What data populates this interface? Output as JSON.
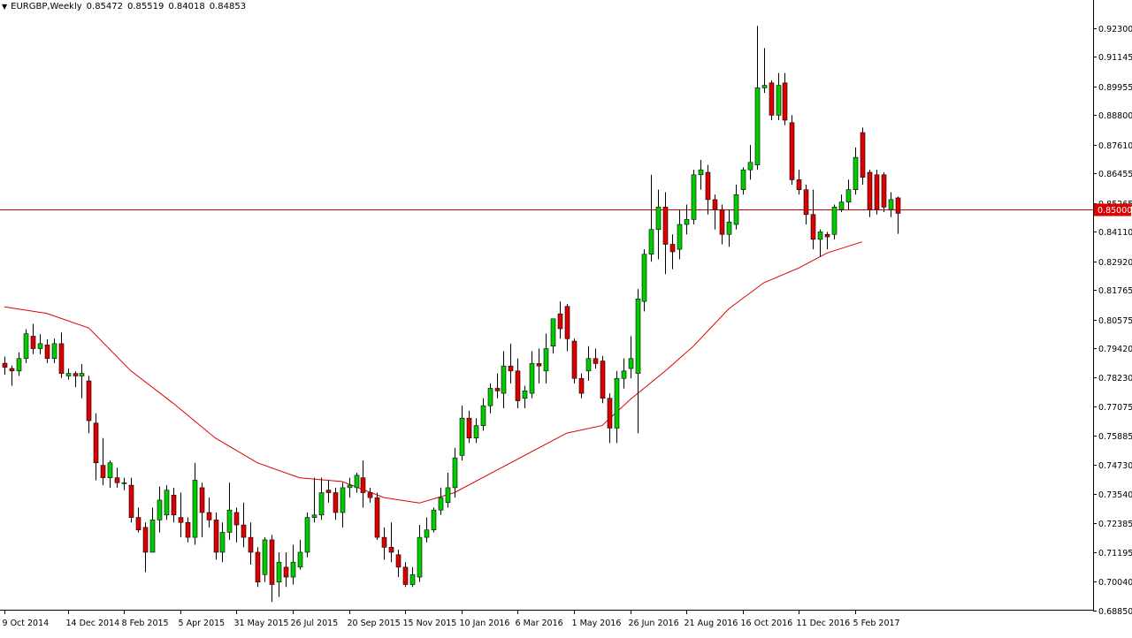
{
  "header": {
    "symbol": "EURGBP,Weekly",
    "ohlc": [
      "0.85472",
      "0.85519",
      "0.84018",
      "0.84853"
    ]
  },
  "colors": {
    "bull": "#00cc00",
    "bear": "#dd0000",
    "wick": "#000000",
    "ma": "#dd0000",
    "hline": "#dd0000",
    "price_label_bg": "#dd0000",
    "price_label_text": "#ffffff"
  },
  "chart_data": {
    "type": "candlestick",
    "title": "EURGBP,Weekly",
    "y_ticks": [
      "0.92300",
      "0.91145",
      "0.89955",
      "0.88800",
      "0.87610",
      "0.86455",
      "0.85265",
      "0.84110",
      "0.82920",
      "0.81765",
      "0.80575",
      "0.79420",
      "0.78230",
      "0.77075",
      "0.75885",
      "0.74730",
      "0.73540",
      "0.72385",
      "0.71195",
      "0.70040",
      "0.68850"
    ],
    "ylim": [
      0.6885,
      0.923
    ],
    "x_ticks": [
      {
        "label": "9 Oct 2014",
        "index": 0
      },
      {
        "label": "14 Dec 2014",
        "index": 9
      },
      {
        "label": "8 Feb 2015",
        "index": 17
      },
      {
        "label": "5 Apr 2015",
        "index": 25
      },
      {
        "label": "31 May 2015",
        "index": 33
      },
      {
        "label": "26 Jul 2015",
        "index": 41
      },
      {
        "label": "20 Sep 2015",
        "index": 49
      },
      {
        "label": "15 Nov 2015",
        "index": 57
      },
      {
        "label": "10 Jan 2016",
        "index": 65
      },
      {
        "label": "6 Mar 2016",
        "index": 73
      },
      {
        "label": "1 May 2016",
        "index": 81
      },
      {
        "label": "26 Jun 2016",
        "index": 89
      },
      {
        "label": "21 Aug 2016",
        "index": 97
      },
      {
        "label": "16 Oct 2016",
        "index": 105
      },
      {
        "label": "11 Dec 2016",
        "index": 113
      },
      {
        "label": "5 Feb 2017",
        "index": 121
      }
    ],
    "horizontal_line": {
      "value": 0.85,
      "label": "0.85000"
    },
    "moving_average": [
      [
        0,
        0.8108
      ],
      [
        6,
        0.8082
      ],
      [
        12,
        0.8023
      ],
      [
        18,
        0.785
      ],
      [
        24,
        0.772
      ],
      [
        30,
        0.758
      ],
      [
        36,
        0.748
      ],
      [
        42,
        0.742
      ],
      [
        48,
        0.7405
      ],
      [
        54,
        0.734
      ],
      [
        59,
        0.7318
      ],
      [
        64,
        0.736
      ],
      [
        70,
        0.745
      ],
      [
        76,
        0.754
      ],
      [
        80,
        0.76
      ],
      [
        85,
        0.763
      ],
      [
        89,
        0.7735
      ],
      [
        94,
        0.785
      ],
      [
        98,
        0.795
      ],
      [
        103,
        0.81
      ],
      [
        108,
        0.8205
      ],
      [
        113,
        0.8265
      ],
      [
        117,
        0.8325
      ],
      [
        122,
        0.837
      ]
    ],
    "candles": [
      [
        0.7881,
        0.7865,
        0.7835,
        0.7908
      ],
      [
        0.786,
        0.785,
        0.779,
        0.7872
      ],
      [
        0.785,
        0.79,
        0.783,
        0.7925
      ],
      [
        0.79,
        0.8,
        0.7882,
        0.8018
      ],
      [
        0.799,
        0.794,
        0.7918,
        0.804
      ],
      [
        0.794,
        0.796,
        0.7918,
        0.7998
      ],
      [
        0.7955,
        0.79,
        0.7882,
        0.7978
      ],
      [
        0.79,
        0.796,
        0.7882,
        0.798
      ],
      [
        0.796,
        0.784,
        0.7822,
        0.8005
      ],
      [
        0.783,
        0.784,
        0.7815,
        0.786
      ],
      [
        0.784,
        0.783,
        0.7785,
        0.7848
      ],
      [
        0.783,
        0.784,
        0.774,
        0.7878
      ],
      [
        0.781,
        0.765,
        0.76,
        0.783
      ],
      [
        0.764,
        0.748,
        0.741,
        0.768
      ],
      [
        0.747,
        0.742,
        0.739,
        0.758
      ],
      [
        0.742,
        0.748,
        0.738,
        0.749
      ],
      [
        0.742,
        0.74,
        0.738,
        0.746
      ],
      [
        0.74,
        0.74,
        0.737,
        0.742
      ],
      [
        0.739,
        0.726,
        0.724,
        0.742
      ],
      [
        0.726,
        0.721,
        0.72,
        0.73
      ],
      [
        0.722,
        0.712,
        0.704,
        0.724
      ],
      [
        0.712,
        0.725,
        0.712,
        0.73
      ],
      [
        0.725,
        0.733,
        0.72,
        0.7385
      ],
      [
        0.727,
        0.737,
        0.725,
        0.739
      ],
      [
        0.735,
        0.727,
        0.724,
        0.738
      ],
      [
        0.726,
        0.724,
        0.718,
        0.736
      ],
      [
        0.724,
        0.718,
        0.716,
        0.726
      ],
      [
        0.718,
        0.741,
        0.715,
        0.748
      ],
      [
        0.738,
        0.728,
        0.718,
        0.74
      ],
      [
        0.728,
        0.725,
        0.722,
        0.734
      ],
      [
        0.725,
        0.712,
        0.709,
        0.728
      ],
      [
        0.712,
        0.72,
        0.708,
        0.724
      ],
      [
        0.72,
        0.729,
        0.717,
        0.74
      ],
      [
        0.728,
        0.723,
        0.716,
        0.73
      ],
      [
        0.723,
        0.718,
        0.714,
        0.732
      ],
      [
        0.718,
        0.712,
        0.707,
        0.724
      ],
      [
        0.712,
        0.7,
        0.698,
        0.714
      ],
      [
        0.703,
        0.717,
        0.7,
        0.718
      ],
      [
        0.717,
        0.699,
        0.692,
        0.719
      ],
      [
        0.7,
        0.708,
        0.694,
        0.712
      ],
      [
        0.706,
        0.702,
        0.698,
        0.712
      ],
      [
        0.702,
        0.708,
        0.699,
        0.715
      ],
      [
        0.706,
        0.712,
        0.705,
        0.717
      ],
      [
        0.712,
        0.726,
        0.71,
        0.728
      ],
      [
        0.726,
        0.727,
        0.724,
        0.742
      ],
      [
        0.727,
        0.736,
        0.725,
        0.742
      ],
      [
        0.737,
        0.736,
        0.732,
        0.741
      ],
      [
        0.736,
        0.728,
        0.725,
        0.738
      ],
      [
        0.728,
        0.738,
        0.722,
        0.74
      ],
      [
        0.738,
        0.739,
        0.734,
        0.742
      ],
      [
        0.738,
        0.743,
        0.736,
        0.744
      ],
      [
        0.742,
        0.736,
        0.73,
        0.749
      ],
      [
        0.736,
        0.734,
        0.732,
        0.738
      ],
      [
        0.734,
        0.718,
        0.717,
        0.736
      ],
      [
        0.718,
        0.714,
        0.709,
        0.722
      ],
      [
        0.714,
        0.712,
        0.708,
        0.724
      ],
      [
        0.711,
        0.706,
        0.702,
        0.713
      ],
      [
        0.706,
        0.699,
        0.698,
        0.708
      ],
      [
        0.699,
        0.703,
        0.698,
        0.706
      ],
      [
        0.702,
        0.718,
        0.7,
        0.723
      ],
      [
        0.718,
        0.721,
        0.716,
        0.726
      ],
      [
        0.721,
        0.729,
        0.72,
        0.73
      ],
      [
        0.729,
        0.734,
        0.727,
        0.738
      ],
      [
        0.732,
        0.738,
        0.73,
        0.744
      ],
      [
        0.738,
        0.75,
        0.734,
        0.754
      ],
      [
        0.751,
        0.766,
        0.749,
        0.771
      ],
      [
        0.766,
        0.758,
        0.756,
        0.769
      ],
      [
        0.758,
        0.763,
        0.756,
        0.766
      ],
      [
        0.763,
        0.771,
        0.761,
        0.774
      ],
      [
        0.771,
        0.778,
        0.768,
        0.78
      ],
      [
        0.778,
        0.777,
        0.774,
        0.784
      ],
      [
        0.776,
        0.787,
        0.77,
        0.793
      ],
      [
        0.787,
        0.785,
        0.78,
        0.796
      ],
      [
        0.785,
        0.773,
        0.77,
        0.79
      ],
      [
        0.774,
        0.777,
        0.77,
        0.779
      ],
      [
        0.776,
        0.788,
        0.774,
        0.793
      ],
      [
        0.788,
        0.787,
        0.78,
        0.794
      ],
      [
        0.785,
        0.794,
        0.78,
        0.8
      ],
      [
        0.795,
        0.806,
        0.792,
        0.806
      ],
      [
        0.808,
        0.802,
        0.798,
        0.813
      ],
      [
        0.811,
        0.798,
        0.793,
        0.812
      ],
      [
        0.797,
        0.782,
        0.78,
        0.798
      ],
      [
        0.782,
        0.776,
        0.774,
        0.784
      ],
      [
        0.785,
        0.79,
        0.781,
        0.795
      ],
      [
        0.79,
        0.788,
        0.786,
        0.794
      ],
      [
        0.789,
        0.774,
        0.772,
        0.791
      ],
      [
        0.774,
        0.762,
        0.756,
        0.776
      ],
      [
        0.762,
        0.782,
        0.756,
        0.785
      ],
      [
        0.782,
        0.785,
        0.778,
        0.79
      ],
      [
        0.786,
        0.79,
        0.782,
        0.799
      ],
      [
        0.784,
        0.814,
        0.76,
        0.818
      ],
      [
        0.813,
        0.832,
        0.809,
        0.834
      ],
      [
        0.832,
        0.842,
        0.829,
        0.864
      ],
      [
        0.842,
        0.851,
        0.83,
        0.858
      ],
      [
        0.851,
        0.836,
        0.824,
        0.857
      ],
      [
        0.836,
        0.833,
        0.826,
        0.84
      ],
      [
        0.834,
        0.844,
        0.83,
        0.85
      ],
      [
        0.844,
        0.846,
        0.84,
        0.852
      ],
      [
        0.846,
        0.864,
        0.844,
        0.866
      ],
      [
        0.864,
        0.866,
        0.858,
        0.87
      ],
      [
        0.865,
        0.854,
        0.848,
        0.868
      ],
      [
        0.854,
        0.85,
        0.842,
        0.856
      ],
      [
        0.85,
        0.84,
        0.836,
        0.852
      ],
      [
        0.84,
        0.845,
        0.835,
        0.85
      ],
      [
        0.844,
        0.856,
        0.842,
        0.86
      ],
      [
        0.858,
        0.866,
        0.856,
        0.867
      ],
      [
        0.866,
        0.869,
        0.862,
        0.876
      ],
      [
        0.868,
        0.899,
        0.866,
        0.924
      ],
      [
        0.899,
        0.9,
        0.897,
        0.915
      ],
      [
        0.901,
        0.888,
        0.886,
        0.902
      ],
      [
        0.888,
        0.9,
        0.886,
        0.905
      ],
      [
        0.901,
        0.886,
        0.884,
        0.905
      ],
      [
        0.885,
        0.862,
        0.86,
        0.888
      ],
      [
        0.862,
        0.858,
        0.856,
        0.866
      ],
      [
        0.858,
        0.848,
        0.844,
        0.86
      ],
      [
        0.848,
        0.838,
        0.834,
        0.858
      ],
      [
        0.838,
        0.841,
        0.831,
        0.842
      ],
      [
        0.84,
        0.839,
        0.834,
        0.841
      ],
      [
        0.84,
        0.851,
        0.838,
        0.852
      ],
      [
        0.85,
        0.853,
        0.849,
        0.856
      ],
      [
        0.853,
        0.858,
        0.85,
        0.862
      ],
      [
        0.858,
        0.871,
        0.856,
        0.875
      ],
      [
        0.881,
        0.863,
        0.86,
        0.883
      ],
      [
        0.865,
        0.85,
        0.847,
        0.866
      ],
      [
        0.864,
        0.85,
        0.848,
        0.866
      ],
      [
        0.864,
        0.851,
        0.849,
        0.865
      ],
      [
        0.85,
        0.854,
        0.847,
        0.857
      ],
      [
        0.8547,
        0.8485,
        0.8402,
        0.8552
      ]
    ]
  }
}
